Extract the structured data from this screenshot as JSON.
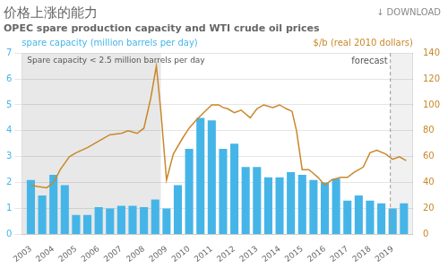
{
  "chart_data": {
    "type": "bar",
    "title": "价格上涨的能力",
    "subtitle": "OPEC spare production capacity and WTI crude oil prices",
    "ylabel": "spare capacity (million barrels per day)",
    "y2label": "$/b (real 2010 dollars)",
    "annotations": [
      "↓ DOWNLOAD"
    ],
    "spans": [
      {
        "from": 2002.6,
        "to": 2008.75,
        "color": "#e8e8e8",
        "label": "Spare capacity < 2.5 million barrels per day"
      },
      {
        "from": 2018.9,
        "to": 2019.9,
        "color": "#e8e8e8"
      }
    ],
    "vlines": [
      {
        "x": 2018.9,
        "label": "forecast"
      }
    ],
    "series": [
      {
        "type": "bar",
        "color": "#45b5e8",
        "x": [
          2003.0,
          2003.5,
          2004.0,
          2004.5,
          2005.0,
          2005.5,
          2006.0,
          2006.5,
          2007.0,
          2007.5,
          2008.0,
          2008.5,
          2009.0,
          2009.5,
          2010.0,
          2010.5,
          2011.0,
          2011.5,
          2012.0,
          2012.5,
          2013.0,
          2013.5,
          2014.0,
          2014.5,
          2015.0,
          2015.5,
          2016.0,
          2016.5,
          2017.0,
          2017.5,
          2018.0,
          2018.5,
          2019.0,
          2019.5
        ],
        "values": [
          2.1,
          1.5,
          2.3,
          1.9,
          0.75,
          0.75,
          1.05,
          1.0,
          1.1,
          1.1,
          1.05,
          1.35,
          1.0,
          1.9,
          3.3,
          4.5,
          4.4,
          3.3,
          3.5,
          2.6,
          2.6,
          2.2,
          2.2,
          2.4,
          2.3,
          2.1,
          2.0,
          2.15,
          1.3,
          1.5,
          1.3,
          1.2,
          1.0,
          1.2
        ]
      },
      {
        "type": "line",
        "color": "#c8882a",
        "axis": "y2",
        "x": [
          2003.0,
          2003.3,
          2003.7,
          2004.0,
          2004.3,
          2004.7,
          2005.0,
          2005.5,
          2006.0,
          2006.5,
          2007.0,
          2007.3,
          2007.7,
          2008.0,
          2008.3,
          2008.55,
          2008.75,
          2009.0,
          2009.3,
          2009.7,
          2010.0,
          2010.3,
          2010.7,
          2011.0,
          2011.3,
          2011.5,
          2011.7,
          2012.0,
          2012.3,
          2012.7,
          2013.0,
          2013.3,
          2013.7,
          2014.0,
          2014.3,
          2014.55,
          2014.75,
          2015.0,
          2015.3,
          2015.5,
          2015.7,
          2016.0,
          2016.3,
          2016.7,
          2017.0,
          2017.3,
          2017.7,
          2018.0,
          2018.3,
          2018.7,
          2019.0,
          2019.3,
          2019.6
        ],
        "values": [
          38,
          37,
          36,
          40,
          50,
          60,
          63,
          67,
          72,
          77,
          78,
          80,
          78,
          82,
          105,
          130,
          95,
          42,
          62,
          74,
          82,
          88,
          95,
          100,
          100,
          98,
          97,
          94,
          96,
          90,
          97,
          100,
          98,
          100,
          97,
          95,
          80,
          50,
          50,
          47,
          44,
          38,
          42,
          44,
          44,
          48,
          52,
          63,
          65,
          62,
          58,
          60,
          57
        ]
      }
    ],
    "xlim": [
      2002.6,
      2019.9
    ],
    "xticks": [
      2003,
      2004,
      2005,
      2006,
      2007,
      2008,
      2009,
      2010,
      2011,
      2012,
      2013,
      2014,
      2015,
      2016,
      2017,
      2018,
      2019
    ],
    "ylim": [
      0,
      7
    ],
    "yticks": [
      0,
      1,
      2,
      3,
      4,
      5,
      6,
      7
    ],
    "y2lim": [
      0,
      140
    ],
    "y2ticks": [
      0,
      20,
      40,
      60,
      80,
      100,
      120,
      140
    ],
    "grid": "y"
  }
}
